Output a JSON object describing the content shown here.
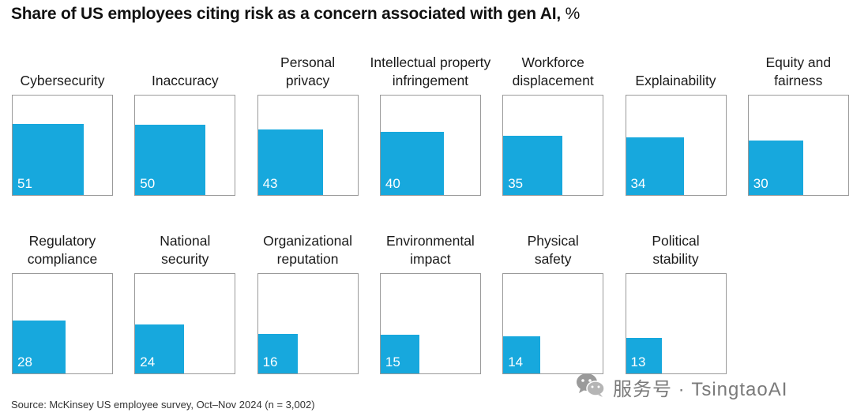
{
  "chart_data": {
    "type": "bar",
    "title": "Share of US employees citing risk as a concern associated with gen AI,",
    "unit": "%",
    "ylim": [
      0,
      100
    ],
    "categories": [
      "Cybersecurity",
      "Inaccuracy",
      "Personal privacy",
      "Intellectual property infringement",
      "Workforce displacement",
      "Explainability",
      "Equity and fairness",
      "Regulatory compliance",
      "National security",
      "Organizational reputation",
      "Environmental impact",
      "Physical safety",
      "Political stability"
    ],
    "labels": [
      "Cybersecurity",
      "Inaccuracy",
      "Personal\nprivacy",
      "Intellectual property\ninfringement",
      "Workforce\ndisplacement",
      "Explainability",
      "Equity and\nfairness",
      "Regulatory\ncompliance",
      "National\nsecurity",
      "Organizational\nreputation",
      "Environmental\nimpact",
      "Physical\nsafety",
      "Political\nstability"
    ],
    "values": [
      51,
      50,
      43,
      40,
      35,
      34,
      30,
      28,
      24,
      16,
      15,
      14,
      13
    ],
    "source": "Source: McKinsey US employee survey, Oct–Nov 2024 (n = 3,002)"
  },
  "watermark": {
    "text": "服务号 · TsingtaoAI",
    "icon": "wechat-icon"
  },
  "colors": {
    "bar": "#17a8dd",
    "frame": "#9a9a9a"
  }
}
